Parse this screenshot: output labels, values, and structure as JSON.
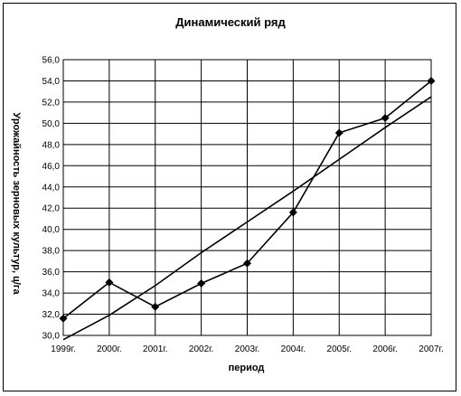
{
  "chart_data": {
    "type": "line",
    "title": "Динамический ряд",
    "xlabel": "период",
    "ylabel": "Урожайность зерновых культур, ц/га",
    "categories": [
      "1999г.",
      "2000г.",
      "2001г.",
      "2002г.",
      "2003г.",
      "2004г.",
      "2005г.",
      "2006г.",
      "2007г."
    ],
    "series": [
      {
        "values": [
          31.6,
          35.0,
          32.7,
          34.9,
          36.8,
          41.6,
          49.1,
          50.5,
          54.0
        ],
        "marker": "diamond",
        "color": "#000000"
      },
      {
        "values": [
          29.6,
          31.9,
          34.7,
          37.8,
          40.7,
          43.6,
          46.6,
          49.6,
          52.5
        ],
        "marker": "none",
        "color": "#000000",
        "kind": "trend"
      }
    ],
    "ylim": [
      30,
      56
    ],
    "ytick_step": 2,
    "ytick_labels": [
      "30,0",
      "32,0",
      "34,0",
      "36,0",
      "38,0",
      "40,0",
      "42,0",
      "44,0",
      "46,0",
      "48,0",
      "50,0",
      "52,0",
      "54,0",
      "56,0"
    ],
    "grid": true,
    "legend": "none"
  }
}
